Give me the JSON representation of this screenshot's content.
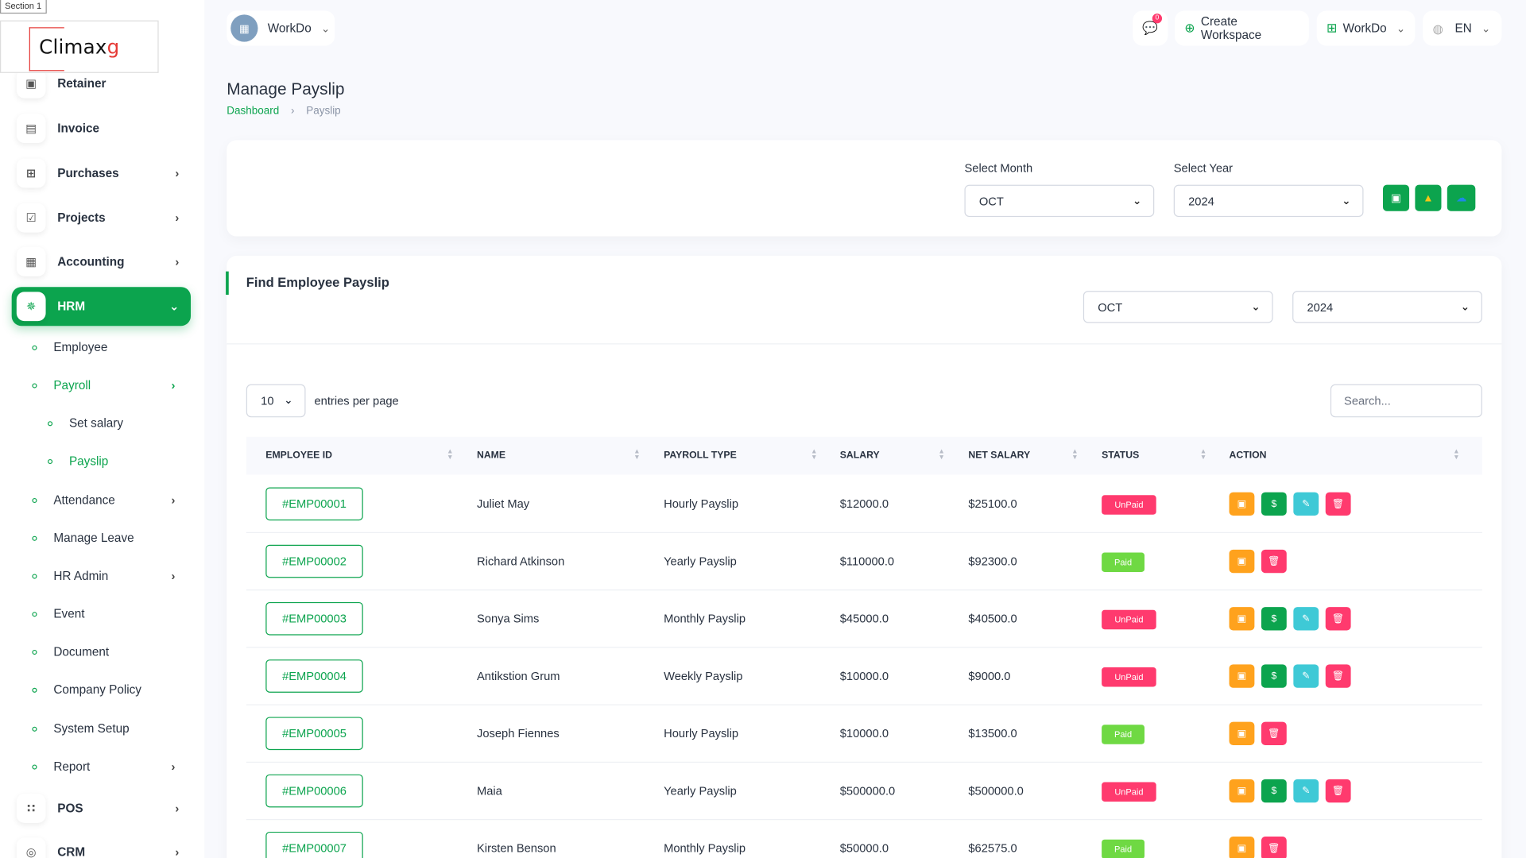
{
  "section_tag": "Section 1",
  "brand": {
    "name_main": "Climax",
    "name_accent": "g"
  },
  "sidebar": {
    "items": [
      {
        "id": "retainer",
        "label": "Retainer",
        "icon": "retainer-icon",
        "glyph": "▣",
        "chevron": false
      },
      {
        "id": "invoice",
        "label": "Invoice",
        "icon": "invoice-icon",
        "glyph": "▤",
        "chevron": false
      },
      {
        "id": "purchases",
        "label": "Purchases",
        "icon": "cart-icon",
        "glyph": "⊞",
        "chevron": true
      },
      {
        "id": "projects",
        "label": "Projects",
        "icon": "checkbox-icon",
        "glyph": "☑",
        "chevron": true
      },
      {
        "id": "accounting",
        "label": "Accounting",
        "icon": "grid-icon",
        "glyph": "▦",
        "chevron": true
      },
      {
        "id": "hrm",
        "label": "HRM",
        "icon": "hrm-icon",
        "glyph": "✵",
        "chevron": true,
        "active": true
      }
    ],
    "hrm_sub": [
      {
        "id": "employee",
        "label": "Employee",
        "level": 1,
        "chevron": false
      },
      {
        "id": "payroll",
        "label": "Payroll",
        "level": 1,
        "chevron": true,
        "green": true
      },
      {
        "id": "set-salary",
        "label": "Set salary",
        "level": 2,
        "chevron": false
      },
      {
        "id": "payslip",
        "label": "Payslip",
        "level": 2,
        "chevron": false,
        "green": true
      },
      {
        "id": "attendance",
        "label": "Attendance",
        "level": 1,
        "chevron": true
      },
      {
        "id": "manage-leave",
        "label": "Manage Leave",
        "level": 1,
        "chevron": false
      },
      {
        "id": "hr-admin",
        "label": "HR Admin",
        "level": 1,
        "chevron": true
      },
      {
        "id": "event",
        "label": "Event",
        "level": 1,
        "chevron": false
      },
      {
        "id": "document",
        "label": "Document",
        "level": 1,
        "chevron": false
      },
      {
        "id": "company-policy",
        "label": "Company Policy",
        "level": 1,
        "chevron": false
      },
      {
        "id": "system-setup",
        "label": "System Setup",
        "level": 1,
        "chevron": false
      },
      {
        "id": "report",
        "label": "Report",
        "level": 1,
        "chevron": true
      }
    ],
    "bottom_items": [
      {
        "id": "pos",
        "label": "POS",
        "icon": "dots-grid-icon",
        "glyph": "∷",
        "chevron": true
      },
      {
        "id": "crm",
        "label": "CRM",
        "icon": "crm-icon",
        "glyph": "◎",
        "chevron": true
      }
    ]
  },
  "topbar": {
    "workspace_label": "WorkDo",
    "notification_count": "0",
    "create_workspace_label": "Create Workspace",
    "workspace_menu_label": "WorkDo",
    "language_label": "EN"
  },
  "page": {
    "title": "Manage Payslip",
    "breadcrumb": {
      "home": "Dashboard",
      "current": "Payslip"
    }
  },
  "filter_card": {
    "month_label": "Select Month",
    "month_value": "OCT",
    "year_label": "Select Year",
    "year_value": "2024",
    "buttons": [
      "clipboard-icon",
      "google-drive-icon",
      "onedrive-icon"
    ]
  },
  "find_card": {
    "title": "Find Employee Payslip",
    "month_value": "OCT",
    "year_value": "2024",
    "entries_value": "10",
    "entries_label": "entries per page",
    "search_placeholder": "Search..."
  },
  "table": {
    "columns": [
      "EMPLOYEE ID",
      "NAME",
      "PAYROLL TYPE",
      "SALARY",
      "NET SALARY",
      "STATUS",
      "ACTION"
    ],
    "rows": [
      {
        "id": "#EMP00001",
        "name": "Juliet May",
        "type": "Hourly Payslip",
        "salary": "$12000.0",
        "net": "$25100.0",
        "status": "UnPaid"
      },
      {
        "id": "#EMP00002",
        "name": "Richard Atkinson",
        "type": "Yearly Payslip",
        "salary": "$110000.0",
        "net": "$92300.0",
        "status": "Paid"
      },
      {
        "id": "#EMP00003",
        "name": "Sonya Sims",
        "type": "Monthly Payslip",
        "salary": "$45000.0",
        "net": "$40500.0",
        "status": "UnPaid"
      },
      {
        "id": "#EMP00004",
        "name": "Antikstion Grum",
        "type": "Weekly Payslip",
        "salary": "$10000.0",
        "net": "$9000.0",
        "status": "UnPaid"
      },
      {
        "id": "#EMP00005",
        "name": "Joseph Fiennes",
        "type": "Hourly Payslip",
        "salary": "$10000.0",
        "net": "$13500.0",
        "status": "Paid"
      },
      {
        "id": "#EMP00006",
        "name": "Maia",
        "type": "Yearly Payslip",
        "salary": "$500000.0",
        "net": "$500000.0",
        "status": "UnPaid"
      },
      {
        "id": "#EMP00007",
        "name": "Kirsten Benson",
        "type": "Monthly Payslip",
        "salary": "$50000.0",
        "net": "$62575.0",
        "status": "Paid"
      }
    ]
  },
  "colors": {
    "primary": "#0ca44e",
    "unpaid": "#ff3a6e",
    "paid": "#6fd943",
    "action_orange": "#ffa21d",
    "action_cyan": "#3ec9d6"
  }
}
